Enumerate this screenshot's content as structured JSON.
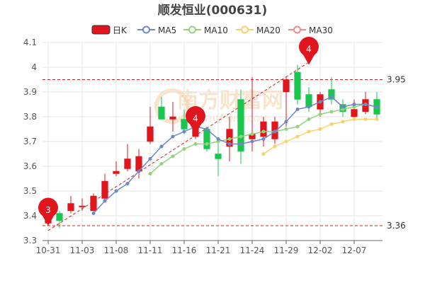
{
  "chart_data": {
    "type": "candlestick",
    "title": "顺发恒业(000631)",
    "legend": [
      "日K",
      "MA5",
      "MA10",
      "MA20",
      "MA30"
    ],
    "legend_position": "top",
    "colors": {
      "up": "#e0161f",
      "down": "#19c54f",
      "ma5": "#6d87c8",
      "ma10": "#92d37a",
      "ma20": "#f7d26a",
      "ma30": "#ee8a8a",
      "ref_line": "#cc2222",
      "grid": "#e6e6e6"
    },
    "watermark": {
      "text": "南方财富网",
      "sub": "SOUTHMONEY.COM"
    },
    "y_axis": {
      "min": 3.3,
      "max": 4.1,
      "ticks": [
        "3.3",
        "3.4",
        "3.5",
        "3.6",
        "3.7",
        "3.8",
        "3.9",
        "4",
        "4.1"
      ],
      "values": [
        3.3,
        3.4,
        3.5,
        3.6,
        3.7,
        3.8,
        3.9,
        4.0,
        4.1
      ]
    },
    "x_axis": {
      "tick_labels": [
        "10-31",
        "11-03",
        "11-08",
        "11-11",
        "11-16",
        "11-21",
        "11-24",
        "11-29",
        "12-02",
        "12-07"
      ],
      "tick_index": [
        0,
        3,
        6,
        9,
        12,
        15,
        18,
        21,
        24,
        27
      ]
    },
    "grid": true,
    "reference_lines": [
      {
        "value": 3.95,
        "label": "3.95"
      },
      {
        "value": 3.36,
        "label": "3.36"
      }
    ],
    "trend_line": {
      "from_index": 0,
      "from_value": 3.34,
      "to_index": 23,
      "to_value": 4.02
    },
    "markers": [
      {
        "index": 0,
        "value": 3.36,
        "label": "3"
      },
      {
        "index": 13,
        "value": 3.73,
        "label": "4"
      },
      {
        "index": 23,
        "value": 4.01,
        "label": "4"
      }
    ],
    "candles": [
      {
        "o": 3.37,
        "c": 3.41,
        "h": 3.42,
        "l": 3.36
      },
      {
        "o": 3.41,
        "c": 3.38,
        "h": 3.42,
        "l": 3.35
      },
      {
        "o": 3.42,
        "c": 3.45,
        "h": 3.48,
        "l": 3.41
      },
      {
        "o": 3.44,
        "c": 3.44,
        "h": 3.47,
        "l": 3.42
      },
      {
        "o": 3.42,
        "c": 3.48,
        "h": 3.49,
        "l": 3.42
      },
      {
        "o": 3.47,
        "c": 3.54,
        "h": 3.57,
        "l": 3.46
      },
      {
        "o": 3.57,
        "c": 3.58,
        "h": 3.62,
        "l": 3.56
      },
      {
        "o": 3.59,
        "c": 3.63,
        "h": 3.69,
        "l": 3.58
      },
      {
        "o": 3.58,
        "c": 3.64,
        "h": 3.67,
        "l": 3.55
      },
      {
        "o": 3.7,
        "c": 3.76,
        "h": 3.84,
        "l": 3.69
      },
      {
        "o": 3.84,
        "c": 3.79,
        "h": 3.88,
        "l": 3.79
      },
      {
        "o": 3.79,
        "c": 3.8,
        "h": 3.86,
        "l": 3.74
      },
      {
        "o": 3.79,
        "c": 3.75,
        "h": 3.83,
        "l": 3.73
      },
      {
        "o": 3.72,
        "c": 3.76,
        "h": 3.77,
        "l": 3.71
      },
      {
        "o": 3.75,
        "c": 3.67,
        "h": 3.76,
        "l": 3.66
      },
      {
        "o": 3.65,
        "c": 3.63,
        "h": 3.7,
        "l": 3.56
      },
      {
        "o": 3.68,
        "c": 3.75,
        "h": 3.8,
        "l": 3.62
      },
      {
        "o": 3.87,
        "c": 3.66,
        "h": 3.91,
        "l": 3.61
      },
      {
        "o": 3.71,
        "c": 3.73,
        "h": 3.96,
        "l": 3.66
      },
      {
        "o": 3.72,
        "c": 3.78,
        "h": 3.8,
        "l": 3.68
      },
      {
        "o": 3.71,
        "c": 3.78,
        "h": 3.8,
        "l": 3.69
      },
      {
        "o": 3.9,
        "c": 3.95,
        "h": 3.96,
        "l": 3.76
      },
      {
        "o": 3.98,
        "c": 3.87,
        "h": 4.01,
        "l": 3.85
      },
      {
        "o": 3.89,
        "c": 3.84,
        "h": 3.92,
        "l": 3.82
      },
      {
        "o": 3.83,
        "c": 3.89,
        "h": 3.9,
        "l": 3.8
      },
      {
        "o": 3.91,
        "c": 3.87,
        "h": 3.96,
        "l": 3.85
      },
      {
        "o": 3.85,
        "c": 3.82,
        "h": 3.87,
        "l": 3.8
      },
      {
        "o": 3.8,
        "c": 3.83,
        "h": 3.87,
        "l": 3.79
      },
      {
        "o": 3.82,
        "c": 3.87,
        "h": 3.9,
        "l": 3.81
      },
      {
        "o": 3.87,
        "c": 3.81,
        "h": 3.9,
        "l": 3.79
      }
    ],
    "ma5": [
      null,
      null,
      null,
      null,
      3.41,
      3.46,
      3.5,
      3.53,
      3.58,
      3.63,
      3.68,
      3.72,
      3.74,
      3.76,
      3.75,
      3.71,
      3.69,
      3.69,
      3.7,
      3.71,
      3.74,
      3.78,
      3.83,
      3.84,
      3.86,
      3.88,
      3.84,
      3.85,
      3.85,
      3.84
    ],
    "ma10": [
      null,
      null,
      null,
      null,
      null,
      null,
      null,
      null,
      null,
      3.57,
      3.61,
      3.64,
      3.67,
      3.69,
      3.69,
      3.7,
      3.71,
      3.72,
      3.73,
      3.74,
      3.74,
      3.75,
      3.76,
      3.79,
      3.81,
      3.82,
      3.83,
      3.84,
      3.85,
      3.84
    ],
    "ma20": [
      null,
      null,
      null,
      null,
      null,
      null,
      null,
      null,
      null,
      null,
      null,
      null,
      null,
      null,
      null,
      null,
      null,
      null,
      null,
      3.65,
      3.68,
      3.7,
      3.72,
      3.74,
      3.75,
      3.77,
      3.78,
      3.79,
      3.79,
      3.79
    ],
    "ma30": []
  }
}
